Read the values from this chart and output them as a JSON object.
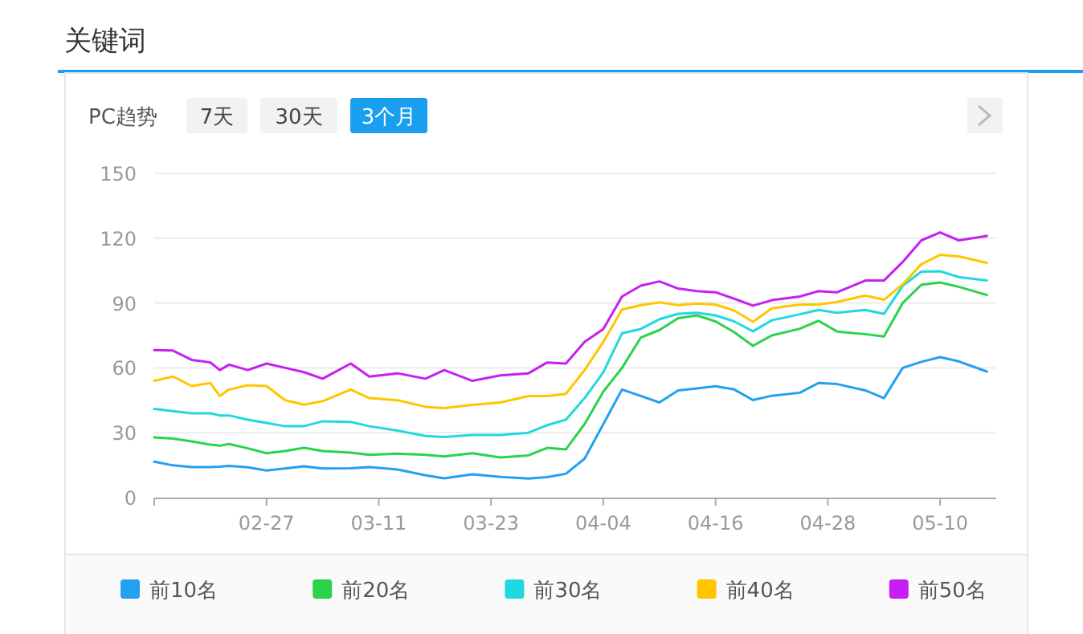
{
  "chart_data": {
    "type": "line",
    "title": "关键词",
    "subtitle": "PC趋势",
    "annotations": [
      "7天",
      "30天",
      "3个月"
    ],
    "x": [
      "--02-15",
      "--02-17",
      "--02-19",
      "--02-21",
      "--02-22",
      "--02-23",
      "--02-25",
      "--02-27",
      "--03-01",
      "--03-03",
      "--03-05",
      "--03-08",
      "--03-10",
      "--03-13",
      "--03-16",
      "--03-18",
      "--03-21",
      "--03-24",
      "--03-27",
      "--03-29",
      "--03-31",
      "--04-02",
      "--04-04",
      "--04-06",
      "--04-08",
      "--04-10",
      "--04-12",
      "--04-14",
      "--04-16",
      "--04-18",
      "--04-20",
      "--04-22",
      "--04-25",
      "--04-27",
      "--04-29",
      "--05-02",
      "--05-04",
      "--05-06",
      "--05-08",
      "--05-10",
      "--05-12",
      "--05-15"
    ],
    "xlim": [
      "--02-15",
      "--05-16"
    ],
    "xticks": [
      {
        "value": "--02-15",
        "label": null
      },
      {
        "value": "--02-27",
        "label": "02-27"
      },
      {
        "value": "--03-11",
        "label": "03-11"
      },
      {
        "value": "--03-23",
        "label": "03-23"
      },
      {
        "value": "--04-04",
        "label": "04-04"
      },
      {
        "value": "--04-16",
        "label": "04-16"
      },
      {
        "value": "--04-28",
        "label": "04-28"
      },
      {
        "value": "--05-10",
        "label": "05-10"
      }
    ],
    "ylim": [
      0,
      150
    ],
    "yticks": [
      0,
      30,
      60,
      90,
      120,
      150
    ],
    "grid": "y",
    "legend": "bottom",
    "series": [
      {
        "name": "前10名",
        "color": "#24a0f0",
        "values": [
          16.6,
          14.9,
          14.1,
          14.1,
          14.3,
          14.7,
          14,
          12.5,
          13.5,
          14.5,
          13.5,
          13.6,
          14.1,
          13,
          10.3,
          8.9,
          10.8,
          9.6,
          8.8,
          9.5,
          11,
          18,
          34,
          50,
          47,
          44,
          49.6,
          50.5,
          51.5,
          50,
          45.1,
          47.1,
          48.5,
          53,
          52.5,
          49.6,
          46,
          60,
          62.8,
          65,
          63,
          58.3
        ]
      },
      {
        "name": "前20名",
        "color": "#2ad34b",
        "values": [
          27.8,
          27.3,
          26,
          24.5,
          24,
          24.8,
          22.8,
          20.5,
          21.5,
          23,
          21.5,
          20.8,
          19.8,
          20.3,
          19.8,
          19,
          20.5,
          18.6,
          19.5,
          23,
          22.3,
          34,
          49,
          60,
          74,
          77.5,
          83,
          84.3,
          81.5,
          76.5,
          70.2,
          75,
          78.1,
          81.8,
          76.8,
          75.6,
          74.5,
          90,
          98.5,
          99.5,
          97.5,
          93.7
        ]
      },
      {
        "name": "前30名",
        "color": "#22d8e0",
        "values": [
          41,
          40,
          39,
          39,
          38,
          38,
          36,
          34.5,
          33,
          33,
          35.3,
          35,
          33,
          31,
          28.5,
          28,
          29,
          29,
          30,
          33.5,
          36,
          46,
          58,
          76,
          78,
          82.5,
          85,
          85.5,
          84.3,
          81.5,
          76.9,
          82,
          84.8,
          86.8,
          85.5,
          86.8,
          85,
          98,
          104.5,
          104.7,
          102,
          100.4
        ]
      },
      {
        "name": "前40名",
        "color": "#ffc600",
        "values": [
          54,
          56,
          51.6,
          53,
          47,
          50,
          52,
          51.6,
          45,
          43,
          44.6,
          50,
          46,
          45,
          42,
          41.4,
          42.9,
          44,
          47,
          47,
          48,
          59,
          72,
          87,
          89,
          90.3,
          89,
          89.8,
          89.3,
          86.5,
          81.3,
          87.5,
          89.3,
          89.3,
          90.5,
          93.5,
          91.5,
          98.7,
          108,
          112.3,
          111.6,
          108.6
        ]
      },
      {
        "name": "前50名",
        "color": "#c620f0",
        "values": [
          68.2,
          68,
          63.7,
          62.5,
          59,
          61.5,
          59,
          62,
          60,
          58,
          55,
          62,
          56,
          57.5,
          55,
          59,
          54,
          56.5,
          57.5,
          62.5,
          62,
          72,
          78,
          93,
          98,
          100,
          96.7,
          95.5,
          95,
          92,
          88.8,
          91.3,
          93,
          95.5,
          95,
          100.4,
          100.4,
          109,
          119,
          122.7,
          119,
          121
        ]
      }
    ]
  }
}
